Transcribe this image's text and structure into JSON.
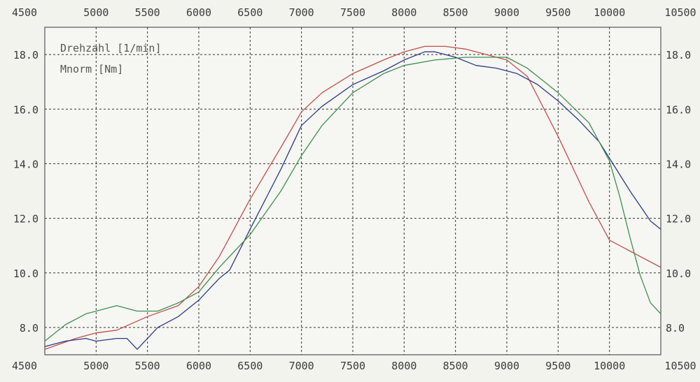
{
  "chart_data": {
    "type": "line",
    "legend": [
      {
        "label": "Drehzahl [1/min]"
      },
      {
        "label": "Mnorm [Nm]"
      }
    ],
    "xlim": [
      4500,
      10500
    ],
    "ylim": [
      7.0,
      19.0
    ],
    "x_ticks": [
      "4500",
      "5000",
      "5500",
      "6000",
      "6500",
      "7000",
      "7500",
      "8000",
      "8500",
      "9000",
      "9500",
      "10000",
      "10500"
    ],
    "y_ticks": [
      "8.0",
      "10.0",
      "12.0",
      "14.0",
      "16.0",
      "18.0"
    ],
    "grid": true,
    "legend_position": "top-left",
    "series": [
      {
        "color": "#c0504d",
        "x": [
          4500,
          4800,
          5000,
          5200,
          5500,
          5800,
          6000,
          6200,
          6500,
          6800,
          7000,
          7200,
          7500,
          7800,
          8000,
          8200,
          8400,
          8600,
          8800,
          9000,
          9200,
          9500,
          9800,
          10000,
          10200,
          10500
        ],
        "y": [
          7.2,
          7.6,
          7.8,
          7.9,
          8.4,
          8.8,
          9.5,
          10.6,
          12.7,
          14.6,
          15.9,
          16.6,
          17.3,
          17.8,
          18.1,
          18.3,
          18.3,
          18.2,
          18.0,
          17.8,
          17.2,
          15.0,
          12.6,
          11.2,
          10.8,
          10.2
        ]
      },
      {
        "color": "#2e3a87",
        "x": [
          4500,
          4700,
          4900,
          5000,
          5200,
          5300,
          5400,
          5500,
          5600,
          5800,
          6000,
          6200,
          6300,
          6500,
          6800,
          7000,
          7200,
          7500,
          7800,
          8000,
          8200,
          8300,
          8500,
          8700,
          8900,
          9100,
          9300,
          9500,
          9700,
          9900,
          10000,
          10200,
          10400,
          10500
        ],
        "y": [
          7.3,
          7.5,
          7.6,
          7.5,
          7.6,
          7.6,
          7.2,
          7.6,
          8.0,
          8.4,
          9.0,
          9.8,
          10.1,
          11.6,
          13.8,
          15.4,
          16.1,
          16.9,
          17.4,
          17.8,
          18.1,
          18.1,
          17.9,
          17.6,
          17.5,
          17.3,
          16.9,
          16.3,
          15.6,
          14.8,
          14.2,
          13.0,
          11.9,
          11.6
        ]
      },
      {
        "color": "#3d8f52",
        "x": [
          4500,
          4700,
          4900,
          5000,
          5200,
          5300,
          5400,
          5600,
          5800,
          6000,
          6200,
          6500,
          6800,
          7000,
          7200,
          7500,
          7800,
          8000,
          8300,
          8600,
          8900,
          9000,
          9200,
          9500,
          9800,
          10000,
          10100,
          10200,
          10300,
          10400,
          10500
        ],
        "y": [
          7.5,
          8.1,
          8.5,
          8.6,
          8.8,
          8.7,
          8.6,
          8.6,
          8.9,
          9.3,
          10.2,
          11.4,
          13.0,
          14.3,
          15.4,
          16.6,
          17.3,
          17.6,
          17.8,
          17.9,
          17.9,
          17.9,
          17.5,
          16.6,
          15.5,
          14.1,
          12.8,
          11.3,
          9.9,
          8.9,
          8.5
        ]
      }
    ]
  }
}
